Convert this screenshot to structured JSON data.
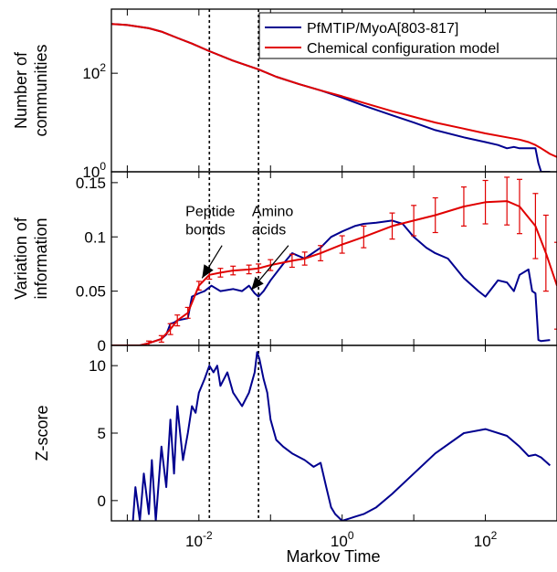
{
  "chart_data": {
    "type": "line",
    "xlabel": "Markov Time",
    "xscale": "log",
    "xlim": [
      0.0006,
      1000
    ],
    "x_tick_labels": [
      {
        "value": 0.01,
        "mant": "10",
        "exp": "-2"
      },
      {
        "value": 1,
        "mant": "10",
        "exp": "0"
      },
      {
        "value": 100,
        "mant": "10",
        "exp": "2"
      }
    ],
    "vlines": [
      0.014,
      0.068
    ],
    "colors": {
      "series_a": "#00008f",
      "series_b": "#e00000"
    },
    "panels": [
      {
        "ylabel": [
          "Number of",
          "communities"
        ],
        "yscale": "log",
        "ylim": [
          1,
          2000
        ],
        "y_tick_labels": [
          {
            "value": 1,
            "mant": "10",
            "exp": "0"
          },
          {
            "value": 100,
            "mant": "10",
            "exp": "2"
          }
        ],
        "legend": {
          "placement": "top-right",
          "entries": [
            "PfMTIP/MyoA[803-817]",
            "Chemical configuration model"
          ]
        },
        "series": [
          {
            "name": "PfMTIP/MyoA[803-817]",
            "color": "#00008f",
            "x": [
              0.0006,
              0.001,
              0.002,
              0.003,
              0.005,
              0.008,
              0.014,
              0.03,
              0.068,
              0.12,
              0.25,
              0.5,
              1,
              2,
              5,
              10,
              20,
              50,
              100,
              150,
              200,
              250,
              300,
              350,
              400,
              450,
              500,
              550,
              600,
              700,
              800
            ],
            "y": [
              1000,
              950,
              820,
              700,
              520,
              400,
              280,
              180,
              120,
              85,
              60,
              45,
              32,
              22,
              14,
              10,
              7,
              5,
              4,
              3.5,
              3,
              3.2,
              3,
              3,
              3,
              3,
              3,
              1.5,
              1,
              1,
              1
            ]
          },
          {
            "name": "Chemical configuration model",
            "color": "#e00000",
            "x": [
              0.0006,
              0.001,
              0.002,
              0.003,
              0.005,
              0.008,
              0.014,
              0.03,
              0.068,
              0.12,
              0.25,
              0.5,
              1,
              2,
              5,
              10,
              20,
              50,
              100,
              200,
              300,
              400,
              500,
              600,
              700,
              800,
              1000
            ],
            "y": [
              1000,
              950,
              820,
              700,
              520,
              400,
              280,
              180,
              120,
              85,
              60,
              45,
              34,
              25,
              17,
              13,
              10,
              7.5,
              6,
              5,
              4.5,
              4,
              3.5,
              3,
              2.6,
              2.3,
              2
            ]
          }
        ]
      },
      {
        "ylabel": [
          "Variation of",
          "information"
        ],
        "yscale": "linear",
        "ylim": [
          0,
          0.16
        ],
        "y_tick_labels": [
          {
            "value": 0,
            "text": "0"
          },
          {
            "value": 0.05,
            "text": "0.05"
          },
          {
            "value": 0.1,
            "text": "0.1"
          },
          {
            "value": 0.15,
            "text": "0.15"
          }
        ],
        "annotations": [
          {
            "lines": [
              "Peptide",
              "bonds"
            ],
            "x": 0.0065,
            "y": 0.119
          },
          {
            "lines": [
              "Amino",
              "acids"
            ],
            "x": 0.055,
            "y": 0.119
          }
        ],
        "series": [
          {
            "name": "PfMTIP/MyoA[803-817]",
            "color": "#00008f",
            "x": [
              0.0006,
              0.001,
              0.0015,
              0.002,
              0.003,
              0.0035,
              0.004,
              0.0045,
              0.005,
              0.007,
              0.008,
              0.01,
              0.012,
              0.015,
              0.02,
              0.03,
              0.04,
              0.05,
              0.06,
              0.068,
              0.08,
              0.1,
              0.15,
              0.2,
              0.3,
              0.5,
              0.7,
              1,
              1.5,
              2,
              3,
              5,
              7,
              10,
              15,
              20,
              30,
              50,
              80,
              100,
              150,
              200,
              250,
              300,
              400,
              450,
              500,
              550,
              600,
              800
            ],
            "y": [
              0,
              0,
              0,
              0.002,
              0.006,
              0.01,
              0.02,
              0.021,
              0.023,
              0.025,
              0.045,
              0.048,
              0.05,
              0.055,
              0.05,
              0.052,
              0.05,
              0.055,
              0.048,
              0.045,
              0.05,
              0.06,
              0.075,
              0.085,
              0.08,
              0.09,
              0.1,
              0.105,
              0.11,
              0.112,
              0.113,
              0.115,
              0.112,
              0.1,
              0.09,
              0.085,
              0.08,
              0.062,
              0.05,
              0.045,
              0.06,
              0.058,
              0.05,
              0.065,
              0.07,
              0.05,
              0.048,
              0.005,
              0.004,
              0.005
            ]
          },
          {
            "name": "Chemical configuration model",
            "color": "#e00000",
            "x": [
              0.0006,
              0.001,
              0.0015,
              0.002,
              0.003,
              0.004,
              0.005,
              0.007,
              0.01,
              0.014,
              0.02,
              0.03,
              0.05,
              0.068,
              0.1,
              0.2,
              0.3,
              0.5,
              1,
              2,
              5,
              10,
              20,
              50,
              100,
              200,
              300,
              500,
              700,
              1000
            ],
            "y": [
              0,
              0,
              0,
              0.002,
              0.006,
              0.015,
              0.023,
              0.03,
              0.055,
              0.065,
              0.067,
              0.069,
              0.07,
              0.071,
              0.074,
              0.078,
              0.08,
              0.085,
              0.093,
              0.1,
              0.11,
              0.115,
              0.12,
              0.128,
              0.132,
              0.133,
              0.128,
              0.11,
              0.085,
              0.055
            ],
            "err": [
              0,
              0,
              0,
              0.002,
              0.003,
              0.005,
              0.005,
              0.005,
              0.004,
              0.004,
              0.004,
              0.004,
              0.004,
              0.004,
              0.005,
              0.006,
              0.006,
              0.007,
              0.008,
              0.01,
              0.012,
              0.014,
              0.016,
              0.018,
              0.02,
              0.022,
              0.025,
              0.03,
              0.035,
              0.04
            ]
          }
        ]
      },
      {
        "ylabel": [
          "Z-score"
        ],
        "yscale": "linear",
        "ylim": [
          -1.5,
          11.5
        ],
        "y_tick_labels": [
          {
            "value": 0,
            "text": "0"
          },
          {
            "value": 5,
            "text": "5"
          },
          {
            "value": 10,
            "text": "10"
          }
        ],
        "series": [
          {
            "name": "PfMTIP/MyoA[803-817]",
            "color": "#00008f",
            "x": [
              0.0012,
              0.0013,
              0.0015,
              0.0017,
              0.002,
              0.0022,
              0.0025,
              0.003,
              0.0035,
              0.004,
              0.0045,
              0.005,
              0.006,
              0.007,
              0.008,
              0.009,
              0.01,
              0.012,
              0.014,
              0.016,
              0.018,
              0.02,
              0.025,
              0.03,
              0.04,
              0.05,
              0.06,
              0.065,
              0.07,
              0.08,
              0.09,
              0.1,
              0.12,
              0.15,
              0.2,
              0.3,
              0.4,
              0.5,
              0.6,
              0.7,
              0.8,
              1,
              1.5,
              2,
              3,
              5,
              10,
              20,
              50,
              100,
              200,
              300,
              400,
              500,
              600,
              800
            ],
            "y": [
              -1.5,
              1,
              -1.5,
              2,
              -1,
              3,
              -1.5,
              4,
              1,
              6,
              2,
              7,
              3,
              5,
              7,
              6.5,
              8,
              9,
              10,
              9.5,
              10,
              8.5,
              9.5,
              8,
              7,
              8,
              9.5,
              11,
              10.5,
              9,
              8,
              6,
              4.5,
              4,
              3.5,
              3,
              2.5,
              2.8,
              1,
              -0.5,
              -1,
              -1.5,
              -1.2,
              -1,
              -0.5,
              0.5,
              2,
              3.5,
              5,
              5.3,
              4.8,
              4,
              3.3,
              3.4,
              3.2,
              2.6
            ]
          }
        ]
      }
    ]
  }
}
